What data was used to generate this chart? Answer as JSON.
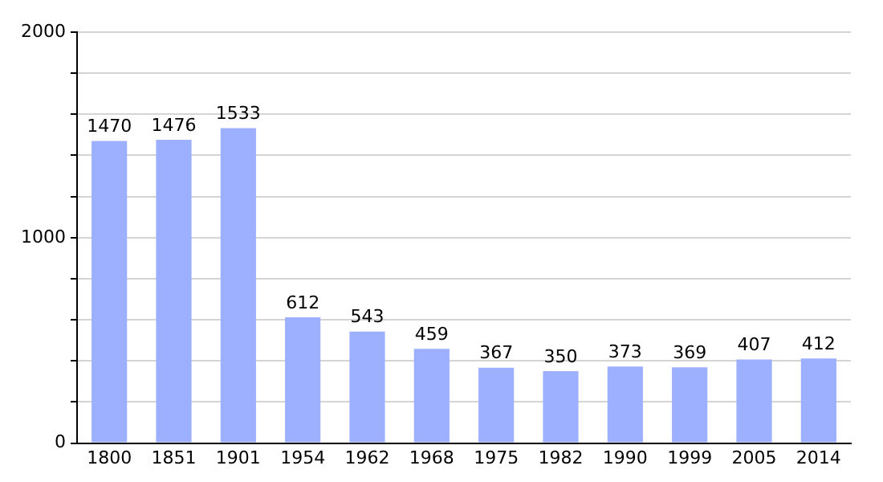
{
  "chart_data": {
    "type": "bar",
    "categories": [
      "1800",
      "1851",
      "1901",
      "1954",
      "1962",
      "1968",
      "1975",
      "1982",
      "1990",
      "1999",
      "2005",
      "2014"
    ],
    "values": [
      1470,
      1476,
      1533,
      612,
      543,
      459,
      367,
      350,
      373,
      369,
      407,
      412
    ],
    "color": "#9db0ff",
    "ylim": [
      0,
      2000
    ],
    "yticks": [
      0,
      {
        "value": 200,
        "label": null
      },
      {
        "value": 400,
        "label": null
      },
      {
        "value": 600,
        "label": null
      },
      {
        "value": 800,
        "label": null
      },
      1000,
      {
        "value": 1200,
        "label": null
      },
      {
        "value": 1400,
        "label": null
      },
      {
        "value": 1600,
        "label": null
      },
      {
        "value": 1800,
        "label": null
      },
      2000
    ],
    "grid": "y",
    "data_labels": true,
    "legend": false
  }
}
